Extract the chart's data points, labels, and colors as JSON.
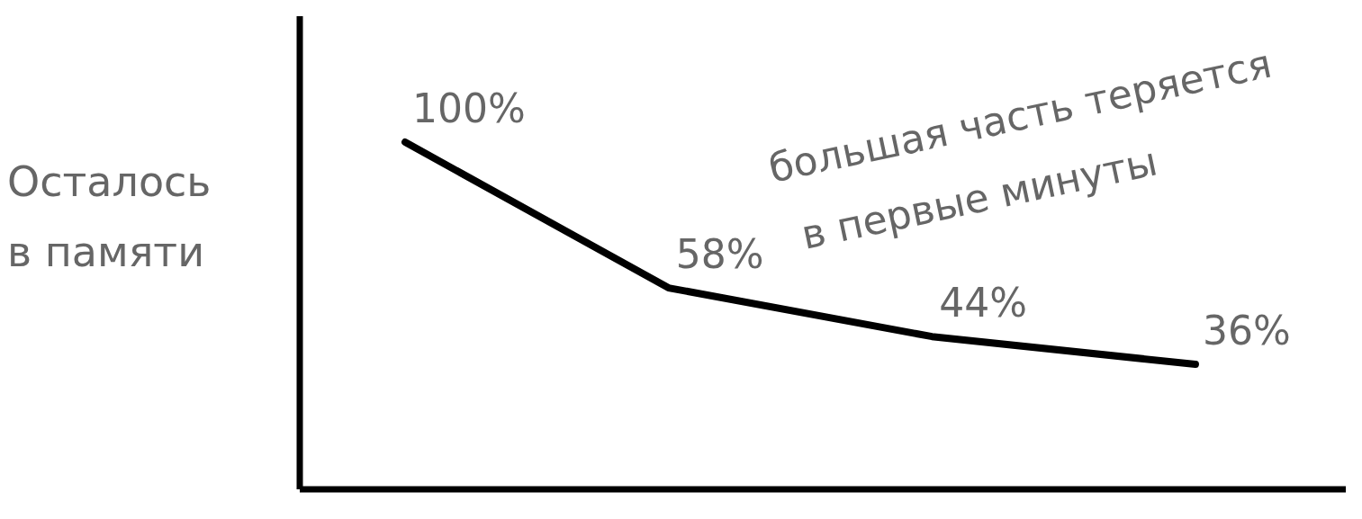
{
  "chart_data": {
    "type": "line",
    "ylabel": "Осталось в памяти",
    "annotations": [
      "большая часть теряется в первые минуты"
    ],
    "categories": [
      null,
      null,
      null,
      null
    ],
    "series": [
      {
        "color": "#000000",
        "values": [
          100,
          58,
          44,
          36
        ],
        "value_labels": [
          "100%",
          "58%",
          "44%",
          "36%"
        ]
      }
    ]
  }
}
